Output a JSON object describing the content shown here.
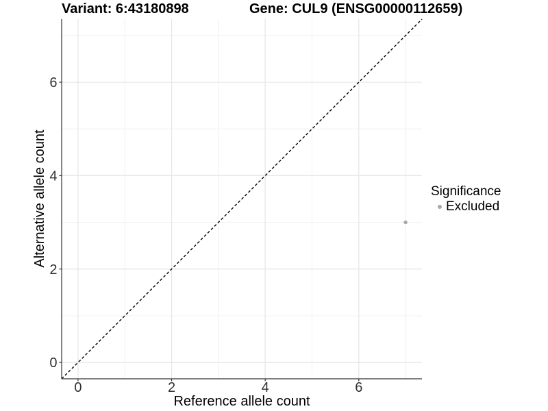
{
  "header": {
    "variant_title": "Variant: 6:43180898",
    "gene_title": "Gene: CUL9 (ENSG00000112659)"
  },
  "axes": {
    "x_label": "Reference allele count",
    "y_label": "Alternative allele count"
  },
  "legend": {
    "title": "Significance",
    "items": [
      {
        "label": "Excluded",
        "color": "#a8a8a8"
      }
    ]
  },
  "colors": {
    "background": "#ffffff",
    "grid_major": "#e5e5e5",
    "grid_minor": "#f0f0f0",
    "axis_line": "#333333",
    "tick_label": "#303030",
    "point_excluded": "#a8a8a8",
    "reference_line": "#000000"
  },
  "chart_data": {
    "type": "scatter",
    "title": "Variant: 6:43180898   Gene: CUL9 (ENSG00000112659)",
    "xlabel": "Reference allele count",
    "ylabel": "Alternative allele count",
    "xlim": [
      -0.35,
      7.35
    ],
    "ylim": [
      -0.35,
      7.35
    ],
    "x_ticks": [
      0,
      2,
      4,
      6
    ],
    "y_ticks": [
      0,
      2,
      4,
      6
    ],
    "minor_ticks": [
      1,
      3,
      5,
      7
    ],
    "grid": true,
    "legend_position": "right",
    "legend_title": "Significance",
    "series": [
      {
        "name": "Excluded",
        "color": "#a8a8a8",
        "points": [
          {
            "x": 7,
            "y": 3
          }
        ]
      }
    ],
    "reference_line": {
      "type": "identity",
      "equation": "y = x",
      "style": "dashed",
      "color": "#000000"
    }
  }
}
